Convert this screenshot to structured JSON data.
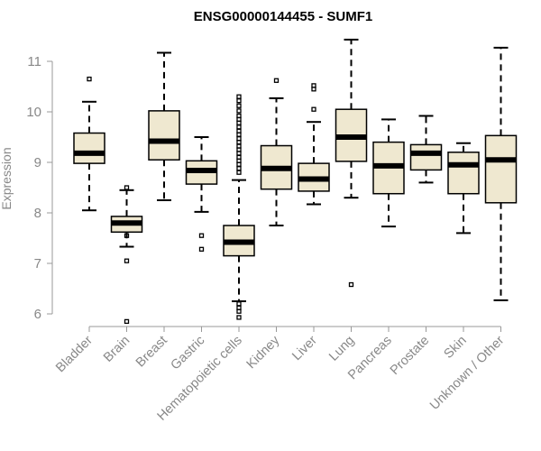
{
  "chart_data": {
    "type": "boxplot",
    "title": "ENSG00000144455 - SUMF1",
    "xlabel": "",
    "ylabel": "Expression",
    "ylim": [
      5.75,
      11.6
    ],
    "yticks": [
      6,
      7,
      8,
      9,
      10,
      11
    ],
    "colors": {
      "box_fill": "#efe8d0",
      "box_stroke": "#000000",
      "axis": "#999999",
      "text": "#888888"
    },
    "categories": [
      "Bladder",
      "Brain",
      "Breast",
      "Gastric",
      "Hematopoietic cells",
      "Kidney",
      "Liver",
      "Lung",
      "Pancreas",
      "Prostate",
      "Skin",
      "Unknown / Other"
    ],
    "boxes": [
      {
        "name": "Bladder",
        "whisker_low": 8.05,
        "q1": 8.98,
        "median": 9.18,
        "q3": 9.58,
        "whisker_high": 10.2,
        "outliers": [
          10.65
        ]
      },
      {
        "name": "Brain",
        "whisker_low": 7.33,
        "q1": 7.62,
        "median": 7.8,
        "q3": 7.93,
        "whisker_high": 8.45,
        "outliers": [
          8.5,
          7.55,
          7.05,
          5.85
        ]
      },
      {
        "name": "Breast",
        "whisker_low": 8.25,
        "q1": 9.05,
        "median": 9.42,
        "q3": 10.02,
        "whisker_high": 11.17,
        "outliers": []
      },
      {
        "name": "Gastric",
        "whisker_low": 8.02,
        "q1": 8.57,
        "median": 8.84,
        "q3": 9.03,
        "whisker_high": 9.5,
        "outliers": [
          7.55,
          7.28
        ]
      },
      {
        "name": "Hematopoietic cells",
        "whisker_low": 6.25,
        "q1": 7.15,
        "median": 7.42,
        "q3": 7.75,
        "whisker_high": 8.65,
        "outliers": [
          10.3,
          10.22,
          10.12,
          10.02,
          9.92,
          9.85,
          9.78,
          9.7,
          9.62,
          9.55,
          9.47,
          9.4,
          9.32,
          9.25,
          9.18,
          9.1,
          9.03,
          8.96,
          8.88,
          8.8,
          6.2,
          6.12,
          6.05,
          5.93
        ]
      },
      {
        "name": "Kidney",
        "whisker_low": 7.75,
        "q1": 8.47,
        "median": 8.88,
        "q3": 9.33,
        "whisker_high": 10.27,
        "outliers": [
          10.62
        ]
      },
      {
        "name": "Liver",
        "whisker_low": 8.17,
        "q1": 8.43,
        "median": 8.67,
        "q3": 8.98,
        "whisker_high": 9.8,
        "outliers": [
          10.52,
          10.45,
          10.05
        ]
      },
      {
        "name": "Lung",
        "whisker_low": 8.3,
        "q1": 9.02,
        "median": 9.5,
        "q3": 10.05,
        "whisker_high": 11.43,
        "outliers": [
          6.58
        ]
      },
      {
        "name": "Pancreas",
        "whisker_low": 7.73,
        "q1": 8.38,
        "median": 8.93,
        "q3": 9.4,
        "whisker_high": 9.85,
        "outliers": []
      },
      {
        "name": "Prostate",
        "whisker_low": 8.6,
        "q1": 8.85,
        "median": 9.18,
        "q3": 9.35,
        "whisker_high": 9.92,
        "outliers": []
      },
      {
        "name": "Skin",
        "whisker_low": 7.6,
        "q1": 8.38,
        "median": 8.95,
        "q3": 9.2,
        "whisker_high": 9.38,
        "outliers": []
      },
      {
        "name": "Unknown / Other",
        "whisker_low": 6.27,
        "q1": 8.2,
        "median": 9.05,
        "q3": 9.53,
        "whisker_high": 11.27,
        "outliers": []
      }
    ]
  }
}
